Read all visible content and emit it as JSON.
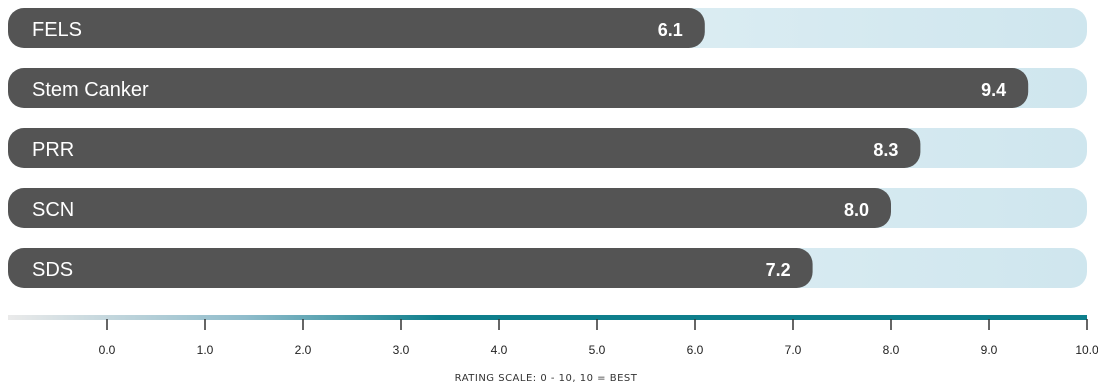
{
  "chart_data": {
    "type": "bar",
    "orientation": "horizontal",
    "categories": [
      "FELS",
      "Stem Canker",
      "PRR",
      "SCN",
      "SDS"
    ],
    "values": [
      6.1,
      9.4,
      8.3,
      8.0,
      7.2
    ],
    "value_labels": [
      "6.1",
      "9.4",
      "8.3",
      "8.0",
      "7.2"
    ],
    "xlim": [
      0,
      10
    ],
    "ticks": [
      0,
      1,
      2,
      3,
      4,
      5,
      6,
      7,
      8,
      9,
      10
    ],
    "tick_labels": [
      "0.0",
      "1.0",
      "2.0",
      "3.0",
      "4.0",
      "5.0",
      "6.0",
      "7.0",
      "8.0",
      "9.0",
      "10.0"
    ],
    "xlabel": "RATING SCALE: 0 - 10, 10 = BEST",
    "grid": false,
    "legend": "none"
  },
  "colors": {
    "bar": "#545454",
    "track_start": "#eef7fa",
    "track_end": "#cfe6ee",
    "axis_gradient_start": "#eaeaea",
    "axis_gradient_mid": "#8fbccb",
    "axis_gradient_end": "#0e7f8c",
    "bar_text": "#ffffff",
    "tick_text": "#222222"
  }
}
